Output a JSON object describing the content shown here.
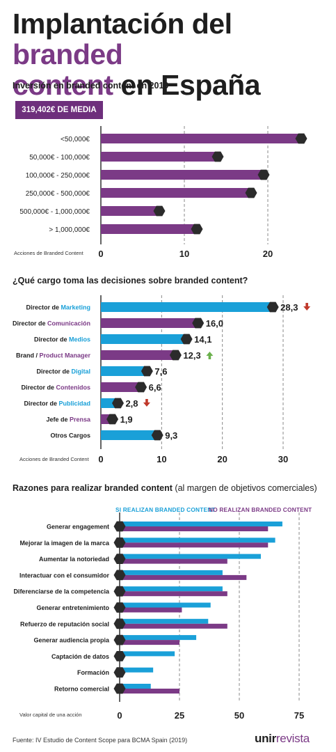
{
  "title": {
    "part1": "Implantación del ",
    "highlight1": "branded",
    "highlight2": "content",
    "part2": " en España"
  },
  "colors": {
    "purple": "#7b3a86",
    "blue": "#1aa0d8",
    "dark": "#2b2b2b",
    "arrow_down": "#c0392b",
    "arrow_up": "#6ab04c"
  },
  "section1": {
    "title": "Inversión en branded content en 2019",
    "badge": "319,402€ DE MEDIA"
  },
  "section2": {
    "title": "¿Qué cargo toma las decisiones sobre branded content?"
  },
  "section3": {
    "title_bold": "Razones para realizar branded content",
    "title_light": " (al margen de objetivos comerciales)"
  },
  "legend": {
    "si": "SI REALIZAN BRANDED CONTENT",
    "no": "NO REALIZAN BRANDED CONTENT"
  },
  "footer": {
    "source": "Fuente: IV Estudio de Content Scope para BCMA Spain (2019)",
    "logo_main": "unir",
    "logo_sub": "revista"
  },
  "chart_data": [
    {
      "type": "bar",
      "orientation": "horizontal",
      "categories": [
        "<50,000€",
        "50,000€ - 100,000€",
        "100,000€ - 250,000€",
        "250,000€ - 500,000€",
        "500,000€ - 1,000,000€",
        "> 1,000,000€"
      ],
      "values": [
        24,
        14,
        19.5,
        18,
        7,
        11.5
      ],
      "xlabel": "Acciones de Branded Content",
      "xlim": [
        0,
        25
      ],
      "xticks": [
        0,
        10,
        20
      ],
      "grid": true,
      "color": "#7b3a86"
    },
    {
      "type": "bar",
      "orientation": "horizontal",
      "categories": [
        {
          "pre": "Director de ",
          "key": "Marketing",
          "color": "blue"
        },
        {
          "pre": "Director de ",
          "key": "Comunicación",
          "color": "purple"
        },
        {
          "pre": "Director de ",
          "key": "Medios",
          "color": "blue"
        },
        {
          "pre": "Brand / ",
          "key": " Product Manager",
          "color": "purple"
        },
        {
          "pre": "Director de ",
          "key": "Digital",
          "color": "blue"
        },
        {
          "pre": "Director de ",
          "key": "Contenidos",
          "color": "purple"
        },
        {
          "pre": "Director de ",
          "key": "Publicidad",
          "color": "blue"
        },
        {
          "pre": "Jefe de ",
          "key": "Prensa",
          "color": "purple"
        },
        {
          "pre": "Otros Cargos",
          "key": "",
          "color": "blue"
        }
      ],
      "values": [
        28.3,
        16.0,
        14.1,
        12.3,
        7.6,
        6.6,
        2.8,
        1.9,
        9.3
      ],
      "value_labels": [
        "28,3",
        "16,0",
        "14,1",
        "12,3",
        "7,6",
        "6,6",
        "2,8",
        "1,9",
        "9,3"
      ],
      "trend": [
        "down",
        "",
        "",
        "up",
        "",
        "",
        "down",
        "",
        ""
      ],
      "xlabel": "Acciones de Branded Content",
      "xlim": [
        0,
        33
      ],
      "xticks": [
        0,
        10,
        20,
        30
      ],
      "grid": true
    },
    {
      "type": "bar",
      "orientation": "horizontal",
      "categories": [
        "Generar engagement",
        "Mejorar la imagen de la marca",
        "Aumentar la notoriedad",
        "Interactuar con el consumidor",
        "Diferenciarse de la competencia",
        "Generar entretenimiento",
        "Refuerzo de reputación social",
        "Generar audiencia propia",
        "Captación de datos",
        "Formación",
        "Retorno comercial"
      ],
      "series": [
        {
          "name": "SI REALIZAN BRANDED CONTENT",
          "color": "#1aa0d8",
          "values": [
            68,
            65,
            59,
            43,
            43,
            38,
            37,
            32,
            23,
            14,
            13
          ]
        },
        {
          "name": "NO REALIZAN BRANDED CONTENT",
          "color": "#7b3a86",
          "values": [
            62,
            62,
            45,
            53,
            45,
            26,
            45,
            25,
            0,
            0,
            25
          ]
        }
      ],
      "xlabel": "Valor capital de una acción",
      "xlim": [
        0,
        80
      ],
      "xticks": [
        0,
        25,
        50,
        75
      ],
      "grid": true,
      "legend": "top"
    }
  ]
}
